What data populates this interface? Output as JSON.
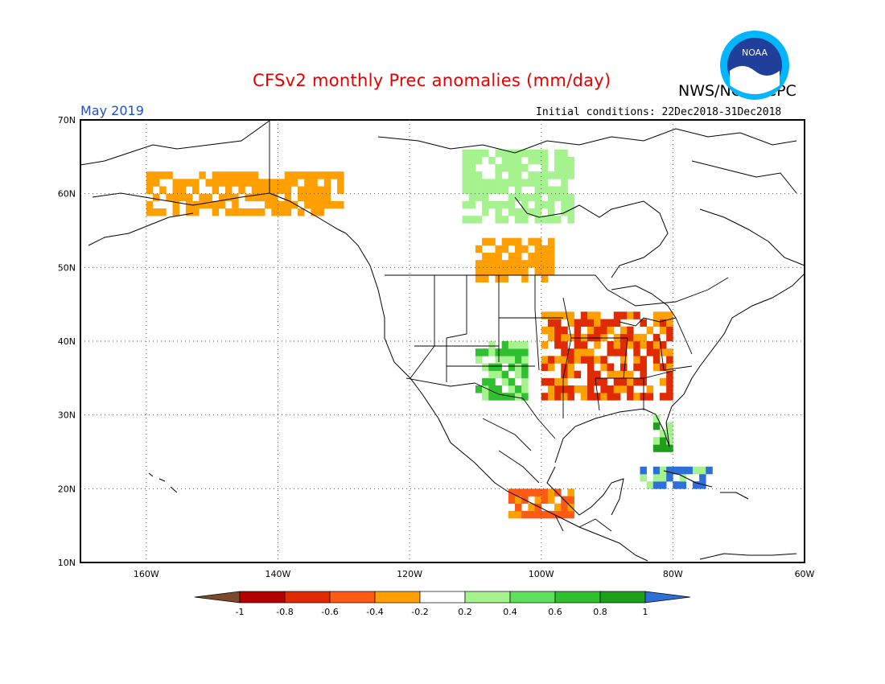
{
  "title": "CFSv2 monthly Prec anomalies (mm/day)",
  "agency": "NWS/NCEP/CPC",
  "logo_text": "NOAA",
  "target_month": "May 2019",
  "initial_conditions": "Initial conditions: 22Dec2018-31Dec2018",
  "axes": {
    "lat_ticks": [
      {
        "value": 70,
        "label": "70N"
      },
      {
        "value": 60,
        "label": "60N"
      },
      {
        "value": 50,
        "label": "50N"
      },
      {
        "value": 40,
        "label": "40N"
      },
      {
        "value": 30,
        "label": "30N"
      },
      {
        "value": 20,
        "label": "20N"
      },
      {
        "value": 10,
        "label": "10N"
      }
    ],
    "lon_ticks": [
      {
        "value": -160,
        "label": "160W"
      },
      {
        "value": -140,
        "label": "140W"
      },
      {
        "value": -120,
        "label": "120W"
      },
      {
        "value": -100,
        "label": "100W"
      },
      {
        "value": -80,
        "label": "80W"
      },
      {
        "value": -60,
        "label": "60W"
      }
    ],
    "lon_range": [
      -170,
      -60
    ],
    "lat_range": [
      10,
      70
    ],
    "grid": "dotted"
  },
  "colorbar": {
    "labels": [
      "-1",
      "-0.8",
      "-0.6",
      "-0.4",
      "-0.2",
      "0.2",
      "0.4",
      "0.6",
      "0.8",
      "1"
    ],
    "colors": [
      "#7a4a2a",
      "#b30000",
      "#e02a00",
      "#ff5a14",
      "#ff9f00",
      "#ffffff",
      "#a6f28f",
      "#5ee05e",
      "#2fbf2f",
      "#1ca01c",
      "#2e6fd8"
    ]
  },
  "anomaly_colors": {
    "orange": "#ff9f00",
    "red_orange": "#ff5a14",
    "red": "#e02a00",
    "dark_red": "#b30000",
    "light_green": "#a6f28f",
    "green": "#5ee05e",
    "mid_green": "#2fbf2f",
    "dark_green": "#1ca01c",
    "blue": "#2e6fd8"
  },
  "regions": [
    {
      "name": "central-us-dry",
      "sign": "negative",
      "lon": [
        -100,
        -80
      ],
      "lat": [
        32,
        44
      ],
      "level": "red"
    },
    {
      "name": "southern-plains-wet",
      "sign": "positive",
      "lon": [
        -110,
        -102
      ],
      "lat": [
        32,
        40
      ],
      "level": "mid_green"
    },
    {
      "name": "canadian-prairies-dry",
      "sign": "negative",
      "lon": [
        -110,
        -98
      ],
      "lat": [
        48,
        54
      ],
      "level": "orange"
    },
    {
      "name": "hudson-bay-wet",
      "sign": "positive",
      "lon": [
        -112,
        -95
      ],
      "lat": [
        56,
        66
      ],
      "level": "light_green"
    },
    {
      "name": "florida-wet",
      "sign": "positive",
      "lon": [
        -83,
        -80
      ],
      "lat": [
        25,
        30
      ],
      "level": "dark_green"
    },
    {
      "name": "cuba-wet",
      "sign": "positive",
      "lon": [
        -85,
        -74
      ],
      "lat": [
        20,
        23
      ],
      "level": "blue"
    },
    {
      "name": "southern-mexico-dry",
      "sign": "negative",
      "lon": [
        -105,
        -95
      ],
      "lat": [
        16,
        20
      ],
      "level": "red_orange"
    },
    {
      "name": "alaska-dry",
      "sign": "negative",
      "lon": [
        -160,
        -130
      ],
      "lat": [
        57,
        63
      ],
      "level": "orange"
    }
  ]
}
